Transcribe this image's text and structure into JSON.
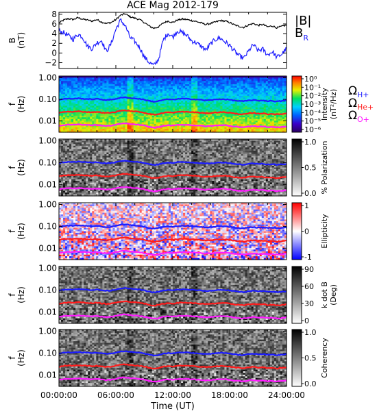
{
  "chart_data": {
    "type": "multi-panel",
    "title": "ACE Mag 2012-179",
    "x_axis": {
      "label": "Time (UT)",
      "ticks": [
        "00:00:00",
        "06:00:00",
        "12:00:00",
        "18:00:00",
        "24:00:00"
      ],
      "range_hours": [
        0,
        24
      ]
    },
    "panels": [
      {
        "id": "field",
        "type": "line",
        "ylabel": "B",
        "yunit": "(nT)",
        "ylim": [
          -3.2,
          8.4
        ],
        "yticks": [
          -2,
          0,
          2,
          4,
          6,
          8
        ],
        "legend": [
          {
            "text": "|B|",
            "sub": "",
            "color": "#000000"
          },
          {
            "text": "B",
            "sub": "R",
            "color": "#1c1cff"
          }
        ],
        "series": [
          {
            "name": "|B|",
            "color": "#000000",
            "x": [
              0,
              0.5,
              1,
              1.5,
              2,
              2.5,
              3,
              3.5,
              4,
              4.5,
              5,
              5.5,
              6,
              6.5,
              7,
              7.5,
              8,
              8.5,
              9,
              9.5,
              10,
              10.5,
              11,
              11.5,
              12,
              12.5,
              13,
              13.5,
              14,
              14.5,
              15,
              15.5,
              16,
              16.5,
              17,
              17.5,
              18,
              18.5,
              19,
              19.5,
              20,
              20.5,
              21,
              21.5,
              22,
              22.5,
              23,
              23.5,
              24
            ],
            "y": [
              6.2,
              6.8,
              7.1,
              6.9,
              7.3,
              7.0,
              6.8,
              6.6,
              6.9,
              6.4,
              6.1,
              6.3,
              6.9,
              7.8,
              8.1,
              7.5,
              7.2,
              6.9,
              6.3,
              5.6,
              5.1,
              5.4,
              6.2,
              6.6,
              6.3,
              6.8,
              7.0,
              6.9,
              6.7,
              6.5,
              6.2,
              5.9,
              6.1,
              6.4,
              6.7,
              6.6,
              6.3,
              5.8,
              5.5,
              5.3,
              5.8,
              6.1,
              5.7,
              5.9,
              5.4,
              5.6,
              5.2,
              5.5,
              5.8
            ]
          },
          {
            "name": "BR",
            "color": "#1c1cff",
            "x": [
              0,
              0.5,
              1,
              1.5,
              2,
              2.5,
              3,
              3.5,
              4,
              4.5,
              5,
              5.5,
              6,
              6.5,
              7,
              7.5,
              8,
              8.5,
              9,
              9.5,
              10,
              10.5,
              11,
              11.5,
              12,
              12.5,
              13,
              13.5,
              14,
              14.5,
              15,
              15.5,
              16,
              16.5,
              17,
              17.5,
              18,
              18.5,
              19,
              19.5,
              20,
              20.5,
              21,
              21.5,
              22,
              22.5,
              23,
              23.5,
              24
            ],
            "y": [
              4.6,
              4.2,
              3.6,
              2.8,
              3.9,
              3.3,
              1.4,
              0.9,
              2.1,
              2.6,
              0.3,
              1.9,
              4.9,
              6.8,
              5.6,
              3.2,
              2.4,
              1.2,
              -0.8,
              -1.9,
              -2.6,
              -1.3,
              2.7,
              4.1,
              3.3,
              4.6,
              4.2,
              3.6,
              2.5,
              2.1,
              1.4,
              0.6,
              1.9,
              2.8,
              3.1,
              2.3,
              1.6,
              0.4,
              -0.6,
              -1.1,
              0.4,
              1.7,
              0.5,
              0.8,
              -0.4,
              0.3,
              -0.9,
              -0.2,
              0.9
            ]
          }
        ]
      },
      {
        "id": "intensity",
        "type": "heatmap",
        "ylabel": "f",
        "yunit": "(Hz)",
        "ylim": [
          0.003,
          1.2
        ],
        "yscale": "log",
        "yticks": [
          "1.00",
          "0.10",
          "0.01"
        ],
        "colorbar": {
          "colormap": "rainbow",
          "label": "Intensity",
          "unit": "(nT²/Hz)",
          "ticks": [
            "10⁰",
            "10⁻¹",
            "10⁻²",
            "10⁻³",
            "10⁻⁴",
            "10⁻⁵",
            "10⁻⁶"
          ]
        }
      },
      {
        "id": "polarization",
        "type": "heatmap",
        "ylabel": "f",
        "yunit": "(Hz)",
        "ylim": [
          0.003,
          1.2
        ],
        "yscale": "log",
        "yticks": [
          "1.00",
          "0.10",
          "0.01"
        ],
        "colorbar": {
          "colormap": "gray",
          "label": "% Polarization",
          "unit": "",
          "ticks": [
            "1.0",
            "0.5",
            "0.0"
          ]
        }
      },
      {
        "id": "ellipticity",
        "type": "heatmap",
        "ylabel": "f",
        "yunit": "(Hz)",
        "ylim": [
          0.003,
          1.2
        ],
        "yscale": "log",
        "yticks": [
          "1.00",
          "0.10",
          "0.01"
        ],
        "colorbar": {
          "colormap": "bwr",
          "label": "Ellipticity",
          "unit": "",
          "ticks": [
            "1",
            "0",
            "-1"
          ]
        }
      },
      {
        "id": "kdotb",
        "type": "heatmap",
        "ylabel": "f",
        "yunit": "(Hz)",
        "ylim": [
          0.003,
          1.2
        ],
        "yscale": "log",
        "yticks": [
          "1.00",
          "0.10",
          "0.01"
        ],
        "colorbar": {
          "colormap": "gray",
          "label": "k dot B",
          "unit": "(Deg)",
          "ticks": [
            "90",
            "60",
            "30",
            "0"
          ]
        }
      },
      {
        "id": "coherency",
        "type": "heatmap",
        "ylabel": "f",
        "yunit": "(Hz)",
        "ylim": [
          0.003,
          1.2
        ],
        "yscale": "log",
        "yticks": [
          "1.00",
          "0.10",
          "0.01"
        ],
        "colorbar": {
          "colormap": "gray",
          "label": "Coherency",
          "unit": "",
          "ticks": [
            "1.0",
            "0.5",
            "0.0"
          ]
        }
      }
    ],
    "gyrofrequency_lines": [
      {
        "name": "Ω",
        "sub": "H+",
        "color": "#1c1cff",
        "mass_ratio": 1
      },
      {
        "name": "Ω",
        "sub": "He+",
        "color": "#ff1c1c",
        "mass_ratio": 4
      },
      {
        "name": "Ω",
        "sub": "O+",
        "color": "#ff1cff",
        "mass_ratio": 16
      }
    ]
  },
  "colors": {
    "axis": "#000000",
    "blue": "#1c1cff",
    "red": "#ff1c1c",
    "magenta": "#ff1cff"
  }
}
